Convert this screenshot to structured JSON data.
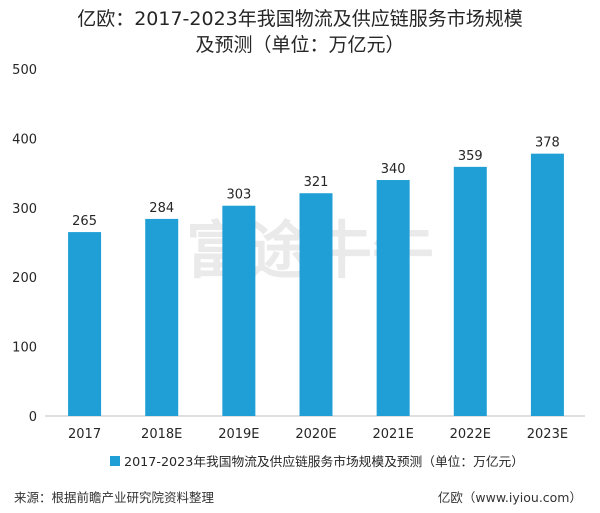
{
  "title_line1": "亿欧：2017-2023年我国物流及供应链服务市场规模",
  "title_line2": "及预测（单位：万亿元）",
  "source": "来源：根据前瞻产业研究院资料整理",
  "credit": "亿欧（www.iyiou.com）",
  "watermark": "富途牛牛",
  "colors": {
    "bar": "#1f9fd6",
    "axis": "#bfbfbf",
    "text": "#262626",
    "watermark": "#e2e2e2"
  },
  "chart_data": {
    "type": "bar",
    "categories": [
      "2017",
      "2018E",
      "2019E",
      "2020E",
      "2021E",
      "2022E",
      "2023E"
    ],
    "series": [
      {
        "name": "2017-2023年我国物流及供应链服务市场规模及预测（单位：万亿元）",
        "values": [
          265,
          284,
          303,
          321,
          340,
          359,
          378
        ]
      }
    ],
    "ylim": [
      0,
      500
    ],
    "yticks": [
      0,
      100,
      200,
      300,
      400,
      500
    ],
    "grid": false,
    "data_labels": true,
    "legend": "bottom"
  }
}
